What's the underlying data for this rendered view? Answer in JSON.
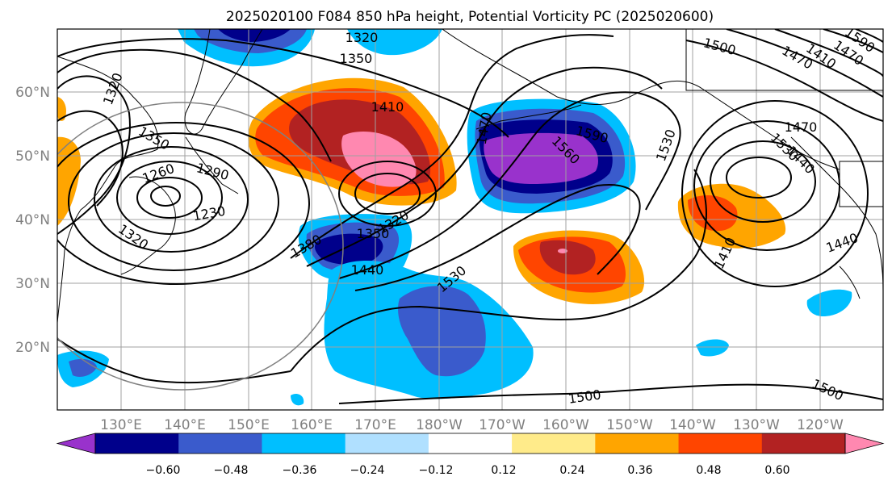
{
  "figure": {
    "title": "2025020100 F084 850 hPa height, Potential Vorticity PC (2025020600)"
  },
  "axes": {
    "lat_labels": [
      "60°N",
      "50°N",
      "40°N",
      "30°N",
      "20°N"
    ],
    "lon_labels": [
      "130°E",
      "140°E",
      "150°E",
      "160°E",
      "170°E",
      "180°W",
      "170°W",
      "160°W",
      "150°W",
      "140°W",
      "130°W",
      "120°W"
    ]
  },
  "contour_labels": [
    "1320",
    "1350",
    "1320",
    "1350",
    "1260",
    "1290",
    "1230",
    "1320",
    "1410",
    "1380",
    "1350",
    "1320",
    "1440",
    "1470",
    "1590",
    "1560",
    "1530",
    "1530",
    "1500",
    "1470",
    "1470",
    "1410",
    "1440",
    "1500",
    "1500",
    "1590",
    "1470",
    "1410",
    "1440",
    "1530"
  ],
  "colorbar": {
    "ticks": [
      "−0.60",
      "−0.48",
      "−0.36",
      "−0.24",
      "−0.12",
      "0.12",
      "0.24",
      "0.36",
      "0.48",
      "0.60"
    ],
    "colors": [
      "#9932cc",
      "#00008b",
      "#3a5bcc",
      "#00bfff",
      "#b0e0ff",
      "#ffffff",
      "#ffeb8a",
      "#ffa500",
      "#ff4500",
      "#b22222",
      "#ff88b0"
    ]
  },
  "colors": {
    "contour": "#000000",
    "coastline": "#000000",
    "grid": "#a0a0a0",
    "frame": "#000000",
    "boundary_circle": "#808080"
  }
}
